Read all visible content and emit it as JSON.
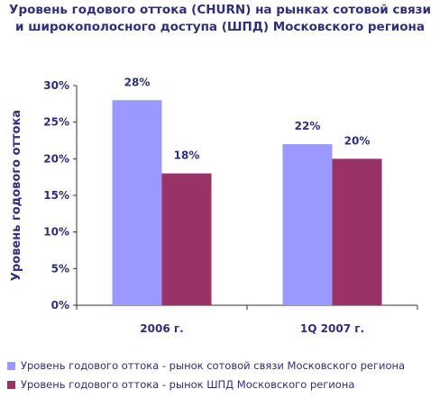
{
  "chart_data": {
    "type": "bar",
    "title": "Уровень годового оттока (CHURN) на рынках сотовой связи и широкополосного доступа (ШПД) Московского региона",
    "title_lines": [
      "Уровень годового оттока (CHURN) на рынках сотовой связи",
      "и широкополосного доступа (ШПД) Московского региона"
    ],
    "ylabel": "Уровень годового оттока",
    "xlabel": "",
    "ylim": [
      0,
      30
    ],
    "yticks": [
      "0%",
      "5%",
      "10%",
      "15%",
      "20%",
      "25%",
      "30%"
    ],
    "ytick_values": [
      0,
      5,
      10,
      15,
      20,
      25,
      30
    ],
    "categories": [
      "2006 г.",
      "1Q 2007 г."
    ],
    "grid": false,
    "legend_placement": "bottom",
    "series": [
      {
        "name": "Уровень годового оттока - рынок сотовой связи Московского региона",
        "values": [
          28,
          22
        ],
        "labels": [
          "28%",
          "22%"
        ],
        "color": "#9999ff"
      },
      {
        "name": "Уровень годового оттока - рынок ШПД Московского региона",
        "values": [
          18,
          20
        ],
        "labels": [
          "18%",
          "20%"
        ],
        "color": "#993366"
      }
    ]
  }
}
